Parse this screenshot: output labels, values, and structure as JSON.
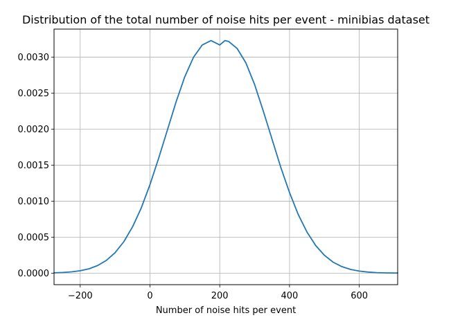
{
  "chart_data": {
    "type": "line",
    "title": "Distribution of the total number of noise hits per event - minibias dataset",
    "xlabel": "Number of noise hits per event",
    "ylabel": "",
    "xlim": [
      -275,
      710
    ],
    "ylim": [
      -0.00016,
      0.00339
    ],
    "grid": true,
    "x_ticks": [
      -200,
      0,
      200,
      400,
      600
    ],
    "x_tick_labels": [
      "−200",
      "0",
      "200",
      "400",
      "600"
    ],
    "y_ticks": [
      0.0,
      0.0005,
      0.001,
      0.0015,
      0.002,
      0.0025,
      0.003
    ],
    "y_tick_labels": [
      "0.0000",
      "0.0005",
      "0.0010",
      "0.0015",
      "0.0020",
      "0.0025",
      "0.0030"
    ],
    "series": [
      {
        "color": "#1f77b4",
        "x": [
          -275,
          -250,
          -225,
          -200,
          -175,
          -150,
          -125,
          -100,
          -75,
          -50,
          -25,
          0,
          25,
          50,
          75,
          100,
          125,
          150,
          175,
          200,
          215,
          225,
          250,
          275,
          300,
          325,
          350,
          375,
          400,
          425,
          450,
          475,
          500,
          525,
          550,
          575,
          600,
          625,
          650,
          675,
          700,
          710
        ],
        "y": [
          4.3e-06,
          8.9e-06,
          1.76e-05,
          3.34e-05,
          6.06e-05,
          0.000106,
          0.000177,
          0.000284,
          0.000436,
          0.000642,
          0.000906,
          0.00123,
          0.0016,
          0.00199,
          0.00238,
          0.00273,
          0.003,
          0.00317,
          0.00323,
          0.00317,
          0.00323,
          0.00322,
          0.00312,
          0.00292,
          0.00262,
          0.00225,
          0.00186,
          0.00147,
          0.00112,
          0.000815,
          0.000571,
          0.000384,
          0.000248,
          0.000153,
          9.09e-05,
          5.17e-05,
          2.82e-05,
          1.47e-05,
          7.4e-06,
          3.6e-06,
          1.7e-06,
          1.3e-06
        ]
      }
    ]
  }
}
